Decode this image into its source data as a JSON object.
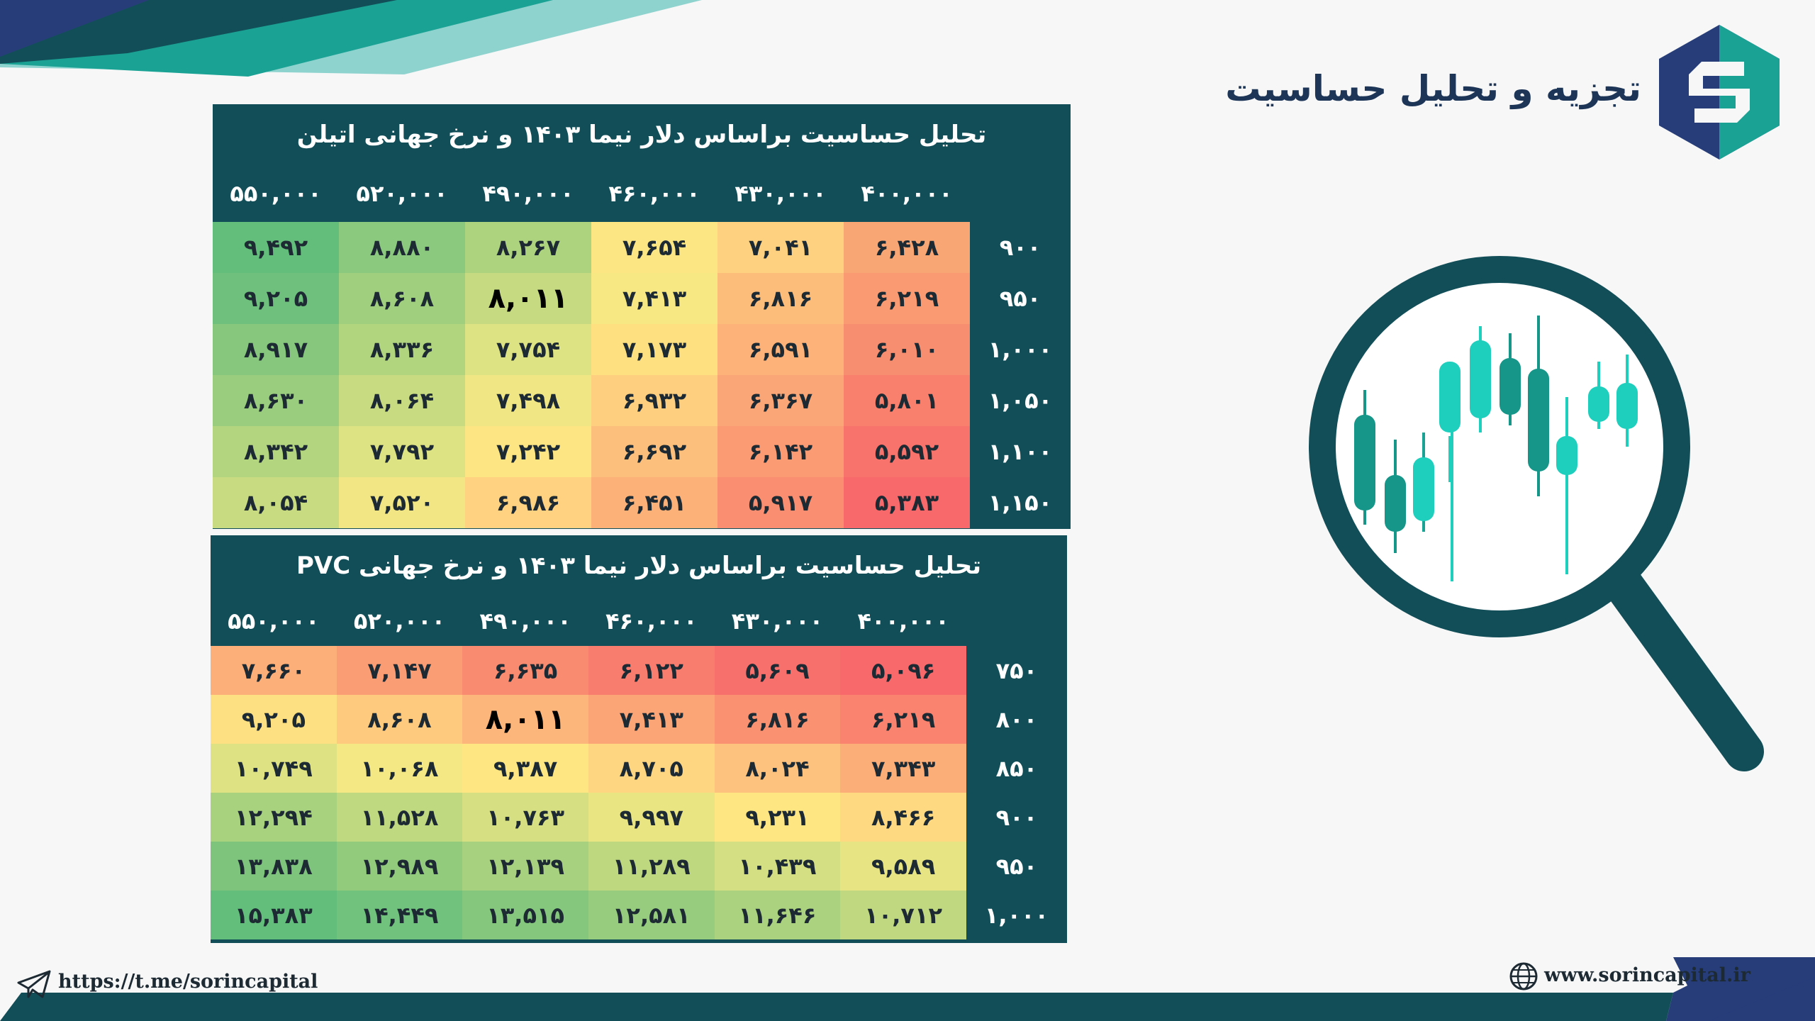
{
  "brand": {
    "title": "تجزیه و تحلیل حساسیت",
    "logo_icon": "sorin-s-hexagon-icon",
    "colors": {
      "navy": "#263d7a",
      "teal": "#1aa394",
      "dark_teal": "#124e58"
    }
  },
  "tables": [
    {
      "title": "تحلیل حساسیت براساس دلار نیما ۱۴۰۳ و نرخ جهانی اتیلن",
      "columns": [
        "۵۵۰,۰۰۰",
        "۵۲۰,۰۰۰",
        "۴۹۰,۰۰۰",
        "۴۶۰,۰۰۰",
        "۴۳۰,۰۰۰",
        "۴۰۰,۰۰۰"
      ],
      "rows": [
        {
          "label": "۹۰۰",
          "values": [
            "۹,۴۹۲",
            "۸,۸۸۰",
            "۸,۲۶۷",
            "۷,۶۵۴",
            "۷,۰۴۱",
            "۶,۴۲۸"
          ]
        },
        {
          "label": "۹۵۰",
          "values": [
            "۹,۲۰۵",
            "۸,۶۰۸",
            "۸,۰۱۱",
            "۷,۴۱۳",
            "۶,۸۱۶",
            "۶,۲۱۹"
          ]
        },
        {
          "label": "۱,۰۰۰",
          "values": [
            "۸,۹۱۷",
            "۸,۳۳۶",
            "۷,۷۵۴",
            "۷,۱۷۳",
            "۶,۵۹۱",
            "۶,۰۱۰"
          ]
        },
        {
          "label": "۱,۰۵۰",
          "values": [
            "۸,۶۳۰",
            "۸,۰۶۴",
            "۷,۴۹۸",
            "۶,۹۳۲",
            "۶,۳۶۷",
            "۵,۸۰۱"
          ]
        },
        {
          "label": "۱,۱۰۰",
          "values": [
            "۸,۳۴۲",
            "۷,۷۹۲",
            "۷,۲۴۲",
            "۶,۶۹۲",
            "۶,۱۴۲",
            "۵,۵۹۲"
          ]
        },
        {
          "label": "۱,۱۵۰",
          "values": [
            "۸,۰۵۴",
            "۷,۵۲۰",
            "۶,۹۸۶",
            "۶,۴۵۱",
            "۵,۹۱۷",
            "۵,۳۸۳"
          ]
        }
      ],
      "colors": [
        [
          "#63be7b",
          "#8ac97e",
          "#aed37f",
          "#fbe683",
          "#fdd17f",
          "#f9a675"
        ],
        [
          "#6ec07c",
          "#a0cf7e",
          "#c5da81",
          "#f8e883",
          "#fcbd7b",
          "#f99a73"
        ],
        [
          "#86c77d",
          "#b1d47f",
          "#dde282",
          "#fee081",
          "#fcb279",
          "#f88e70"
        ],
        [
          "#9acd7e",
          "#c8db81",
          "#f0e683",
          "#fdcf7f",
          "#fba676",
          "#f8806d"
        ],
        [
          "#b3d580",
          "#dde282",
          "#fde583",
          "#fcc07c",
          "#fa9b73",
          "#f8736b"
        ],
        [
          "#c9db81",
          "#f1e683",
          "#fed280",
          "#fcb179",
          "#f98e70",
          "#f8696b"
        ]
      ],
      "bold_cell": [
        1,
        2
      ]
    },
    {
      "title": "تحلیل حساسیت براساس دلار نیما ۱۴۰۳ و نرخ جهانی PVC",
      "columns": [
        "۵۵۰,۰۰۰",
        "۵۲۰,۰۰۰",
        "۴۹۰,۰۰۰",
        "۴۶۰,۰۰۰",
        "۴۳۰,۰۰۰",
        "۴۰۰,۰۰۰"
      ],
      "rows": [
        {
          "label": "۷۵۰",
          "values": [
            "۷,۶۶۰",
            "۷,۱۴۷",
            "۶,۶۳۵",
            "۶,۱۲۲",
            "۵,۶۰۹",
            "۵,۰۹۶"
          ]
        },
        {
          "label": "۸۰۰",
          "values": [
            "۹,۲۰۵",
            "۸,۶۰۸",
            "۸,۰۱۱",
            "۷,۴۱۳",
            "۶,۸۱۶",
            "۶,۲۱۹"
          ]
        },
        {
          "label": "۸۵۰",
          "values": [
            "۱۰,۷۴۹",
            "۱۰,۰۶۸",
            "۹,۳۸۷",
            "۸,۷۰۵",
            "۸,۰۲۴",
            "۷,۳۴۳"
          ]
        },
        {
          "label": "۹۰۰",
          "values": [
            "۱۲,۲۹۴",
            "۱۱,۵۲۸",
            "۱۰,۷۶۳",
            "۹,۹۹۷",
            "۹,۲۳۱",
            "۸,۴۶۶"
          ]
        },
        {
          "label": "۹۵۰",
          "values": [
            "۱۳,۸۳۸",
            "۱۲,۹۸۹",
            "۱۲,۱۳۹",
            "۱۱,۲۸۹",
            "۱۰,۴۳۹",
            "۹,۵۸۹"
          ]
        },
        {
          "label": "۱,۰۰۰",
          "values": [
            "۱۵,۳۸۳",
            "۱۴,۴۴۹",
            "۱۳,۵۱۵",
            "۱۲,۵۸۱",
            "۱۱,۶۴۶",
            "۱۰,۷۱۲"
          ]
        }
      ],
      "colors": [
        [
          "#fcaf78",
          "#fb9d74",
          "#f98b70",
          "#f97d6e",
          "#f8706c",
          "#f8696b"
        ],
        [
          "#fde082",
          "#fdca7e",
          "#fcb57a",
          "#fba476",
          "#fa9272",
          "#f9836f"
        ],
        [
          "#dfe283",
          "#f3e884",
          "#fee683",
          "#fed580",
          "#fdc27d",
          "#fcae79"
        ],
        [
          "#a9d27f",
          "#bfd981",
          "#d6e082",
          "#eae583",
          "#fee683",
          "#fed981"
        ],
        [
          "#7fc47c",
          "#93cb7d",
          "#a8d17f",
          "#bed880",
          "#d3df82",
          "#e6e483"
        ],
        [
          "#63be7b",
          "#71c27c",
          "#84c77d",
          "#97cc7e",
          "#abd27f",
          "#c0d981"
        ]
      ],
      "bold_cell": [
        1,
        2
      ]
    }
  ],
  "illustration": {
    "icon": "magnifier-candlestick-icon"
  },
  "footer": {
    "telegram_icon": "telegram-icon",
    "telegram_url": "https://t.me/sorincapital",
    "globe_icon": "globe-icon",
    "website": "www.sorincapital.ir"
  }
}
